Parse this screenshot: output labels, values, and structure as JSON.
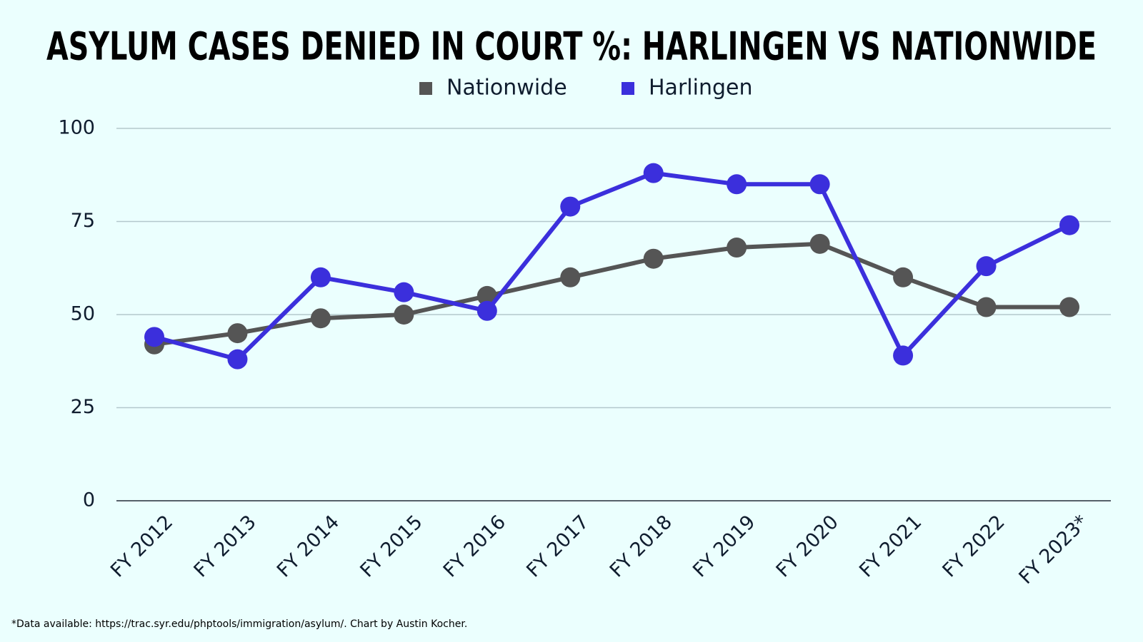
{
  "chart_data": {
    "type": "line",
    "title": "ASYLUM CASES DENIED IN COURT %: HARLINGEN VS NATIONWIDE",
    "categories": [
      "FY 2012",
      "FY 2013",
      "FY 2014",
      "FY 2015",
      "FY 2016",
      "FY 2017",
      "FY 2018",
      "FY 2019",
      "FY 2020",
      "FY 2021",
      "FY 2022",
      "FY 2023*"
    ],
    "series": [
      {
        "name": "Nationwide",
        "color": "#555555",
        "values": [
          42,
          45,
          49,
          50,
          55,
          60,
          65,
          68,
          69,
          60,
          52,
          52
        ]
      },
      {
        "name": "Harlingen",
        "color": "#3b2fdc",
        "values": [
          44,
          38,
          60,
          56,
          51,
          79,
          88,
          85,
          85,
          39,
          63,
          74
        ]
      }
    ],
    "ylim": [
      0,
      100
    ],
    "yticks": [
      0,
      25,
      50,
      75,
      100
    ],
    "grid": true,
    "legend": "top",
    "note": "*Data available: https://trac.syr.edu/phptools/immigration/asylum/. Chart by Austin Kocher."
  }
}
